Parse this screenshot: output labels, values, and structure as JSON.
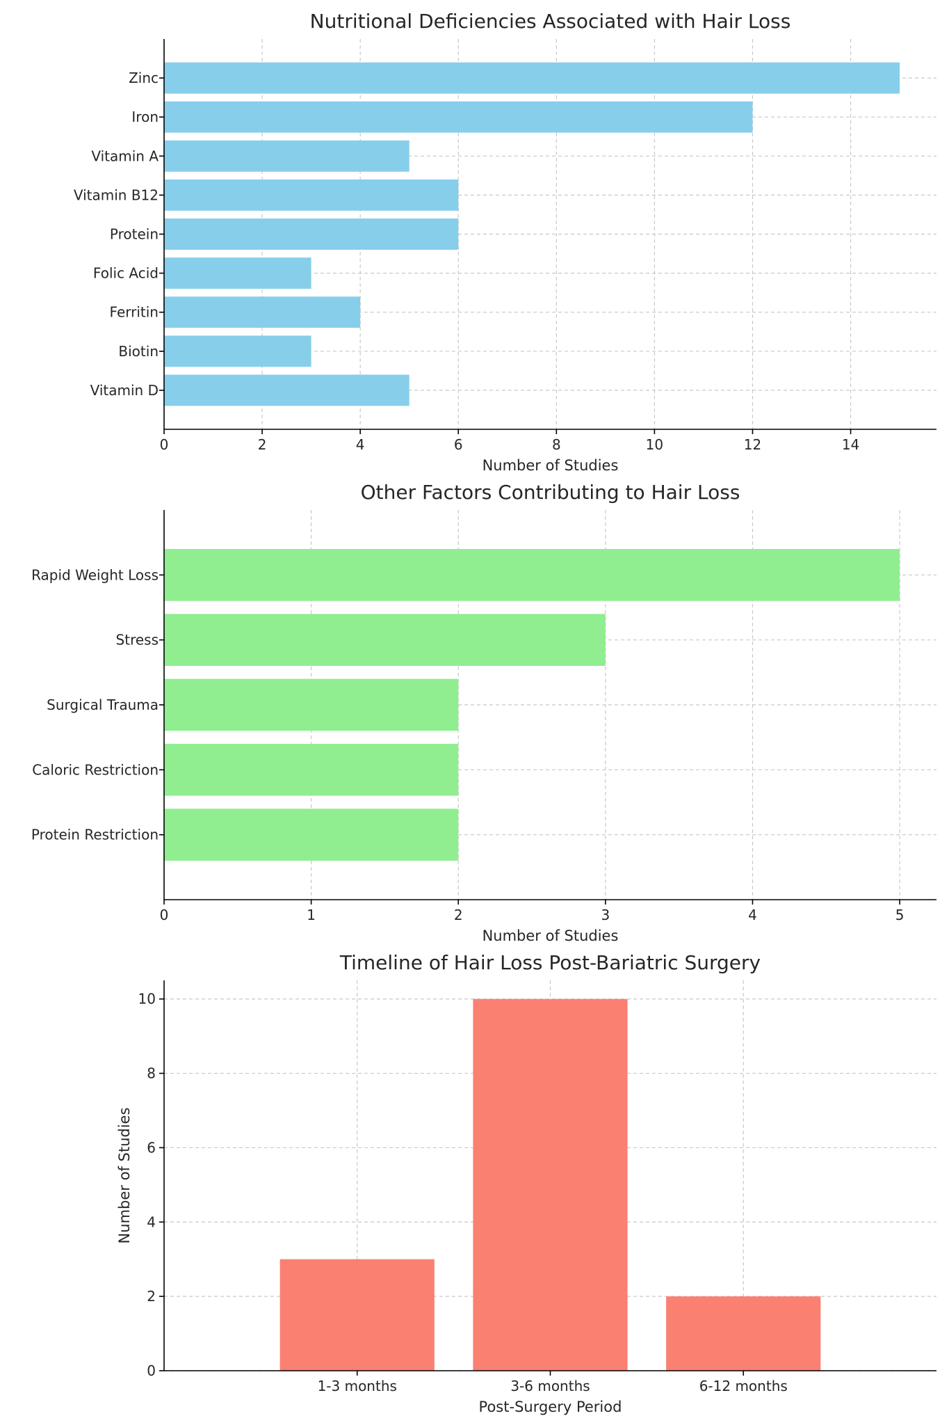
{
  "chart_data": [
    {
      "type": "bar",
      "orientation": "horizontal",
      "title": "Nutritional Deficiencies Associated with Hair Loss",
      "xlabel": "Number of Studies",
      "ylabel": "",
      "categories": [
        "Zinc",
        "Iron",
        "Vitamin A",
        "Vitamin B12",
        "Protein",
        "Folic Acid",
        "Ferritin",
        "Biotin",
        "Vitamin D"
      ],
      "values": [
        15,
        12,
        5,
        6,
        6,
        3,
        4,
        3,
        5
      ],
      "xlim": [
        0,
        15.75
      ],
      "xticks": [
        0,
        2,
        4,
        6,
        8,
        10,
        12,
        14
      ],
      "color": "#87ceeb",
      "grid": true
    },
    {
      "type": "bar",
      "orientation": "horizontal",
      "title": "Other Factors Contributing to Hair Loss",
      "xlabel": "Number of Studies",
      "ylabel": "",
      "categories": [
        "Rapid Weight Loss",
        "Stress",
        "Surgical Trauma",
        "Caloric Restriction",
        "Protein Restriction"
      ],
      "values": [
        5,
        3,
        2,
        2,
        2
      ],
      "xlim": [
        0,
        5.25
      ],
      "xticks": [
        0,
        1,
        2,
        3,
        4,
        5
      ],
      "color": "#90ee90",
      "grid": true
    },
    {
      "type": "bar",
      "orientation": "vertical",
      "title": "Timeline of Hair Loss Post-Bariatric Surgery",
      "xlabel": "Post-Surgery Period",
      "ylabel": "Number of Studies",
      "categories": [
        "1-3 months",
        "3-6 months",
        "6-12 months"
      ],
      "values": [
        3,
        10,
        2
      ],
      "ylim": [
        0,
        10.5
      ],
      "yticks": [
        0,
        2,
        4,
        6,
        8,
        10
      ],
      "color": "#fa8072",
      "grid": true
    }
  ]
}
